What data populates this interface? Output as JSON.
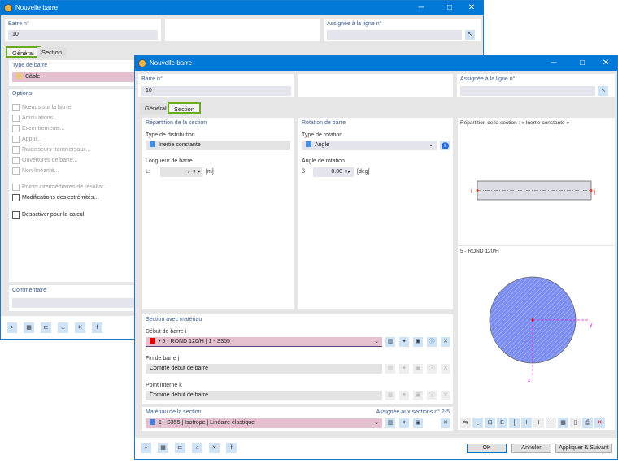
{
  "back": {
    "title": "Nouvelle barre",
    "member_no_label": "Barre n°",
    "member_no": "10",
    "assigned_label": "Assignée à la ligne n°",
    "tabs": [
      "Général",
      "Section"
    ],
    "member_type_label": "Type de barre",
    "member_type": "Câble",
    "options_label": "Options",
    "options": [
      "Nœuds sur la barre",
      "Articulations...",
      "Excentrements...",
      "Appui...",
      "Raidisseurs transversaux...",
      "Ouvertures de barre...",
      "Non-linéarité..."
    ],
    "result_points": "Points intermédiaires de résultat...",
    "end_mods": "Modifications des extrémités...",
    "deactivate": "Désactiver pour le calcul",
    "comment_label": "Commentaire"
  },
  "front": {
    "title": "Nouvelle barre",
    "member_no_label": "Barre n°",
    "member_no": "10",
    "assigned_label": "Assignée à la ligne n°",
    "tabs": [
      "Général",
      "Section"
    ],
    "distribution": {
      "header": "Répartition de la section",
      "type_label": "Type de distribution",
      "type": "Inertie constante",
      "length_label": "Longueur de barre",
      "length_symbol": "L:",
      "length_unit": "[m]"
    },
    "rotation": {
      "header": "Rotation de barre",
      "type_label": "Type de rotation",
      "type": "Angle",
      "angle_label": "Angle de rotation",
      "angle_symbol": "β",
      "angle": "0.00",
      "angle_unit": "[deg]"
    },
    "section": {
      "header": "Section avec matériau",
      "start_label": "Début de barre i",
      "start": "5 - ROND 120/H | 1 - S355",
      "end_label": "Fin de barre j",
      "end": "Comme début de barre",
      "internal_label": "Point interne k",
      "internal": "Comme début de barre"
    },
    "material": {
      "header": "Matériau de la section",
      "assigned": "Assignée aux sections n° 2-5",
      "value": "1 - S355 | Isotrope | Linéaire élastique"
    },
    "preview": {
      "dist_title": "Répartition de la section : « Inertie constante »",
      "node_i": "i",
      "node_j": "j",
      "section_title": "5 - ROND 120/H",
      "axis_y": "y",
      "axis_z": "z"
    },
    "buttons": {
      "ok": "OK",
      "cancel": "Annuler",
      "apply_next": "Appliquer & Suivant"
    }
  },
  "colors": {
    "titlebar": "#0078d7",
    "tab_highlight": "#6aaa1e",
    "section_fill": "#7b8ef0",
    "start_color": "#e00000",
    "material_color": "#4a7fd6"
  }
}
